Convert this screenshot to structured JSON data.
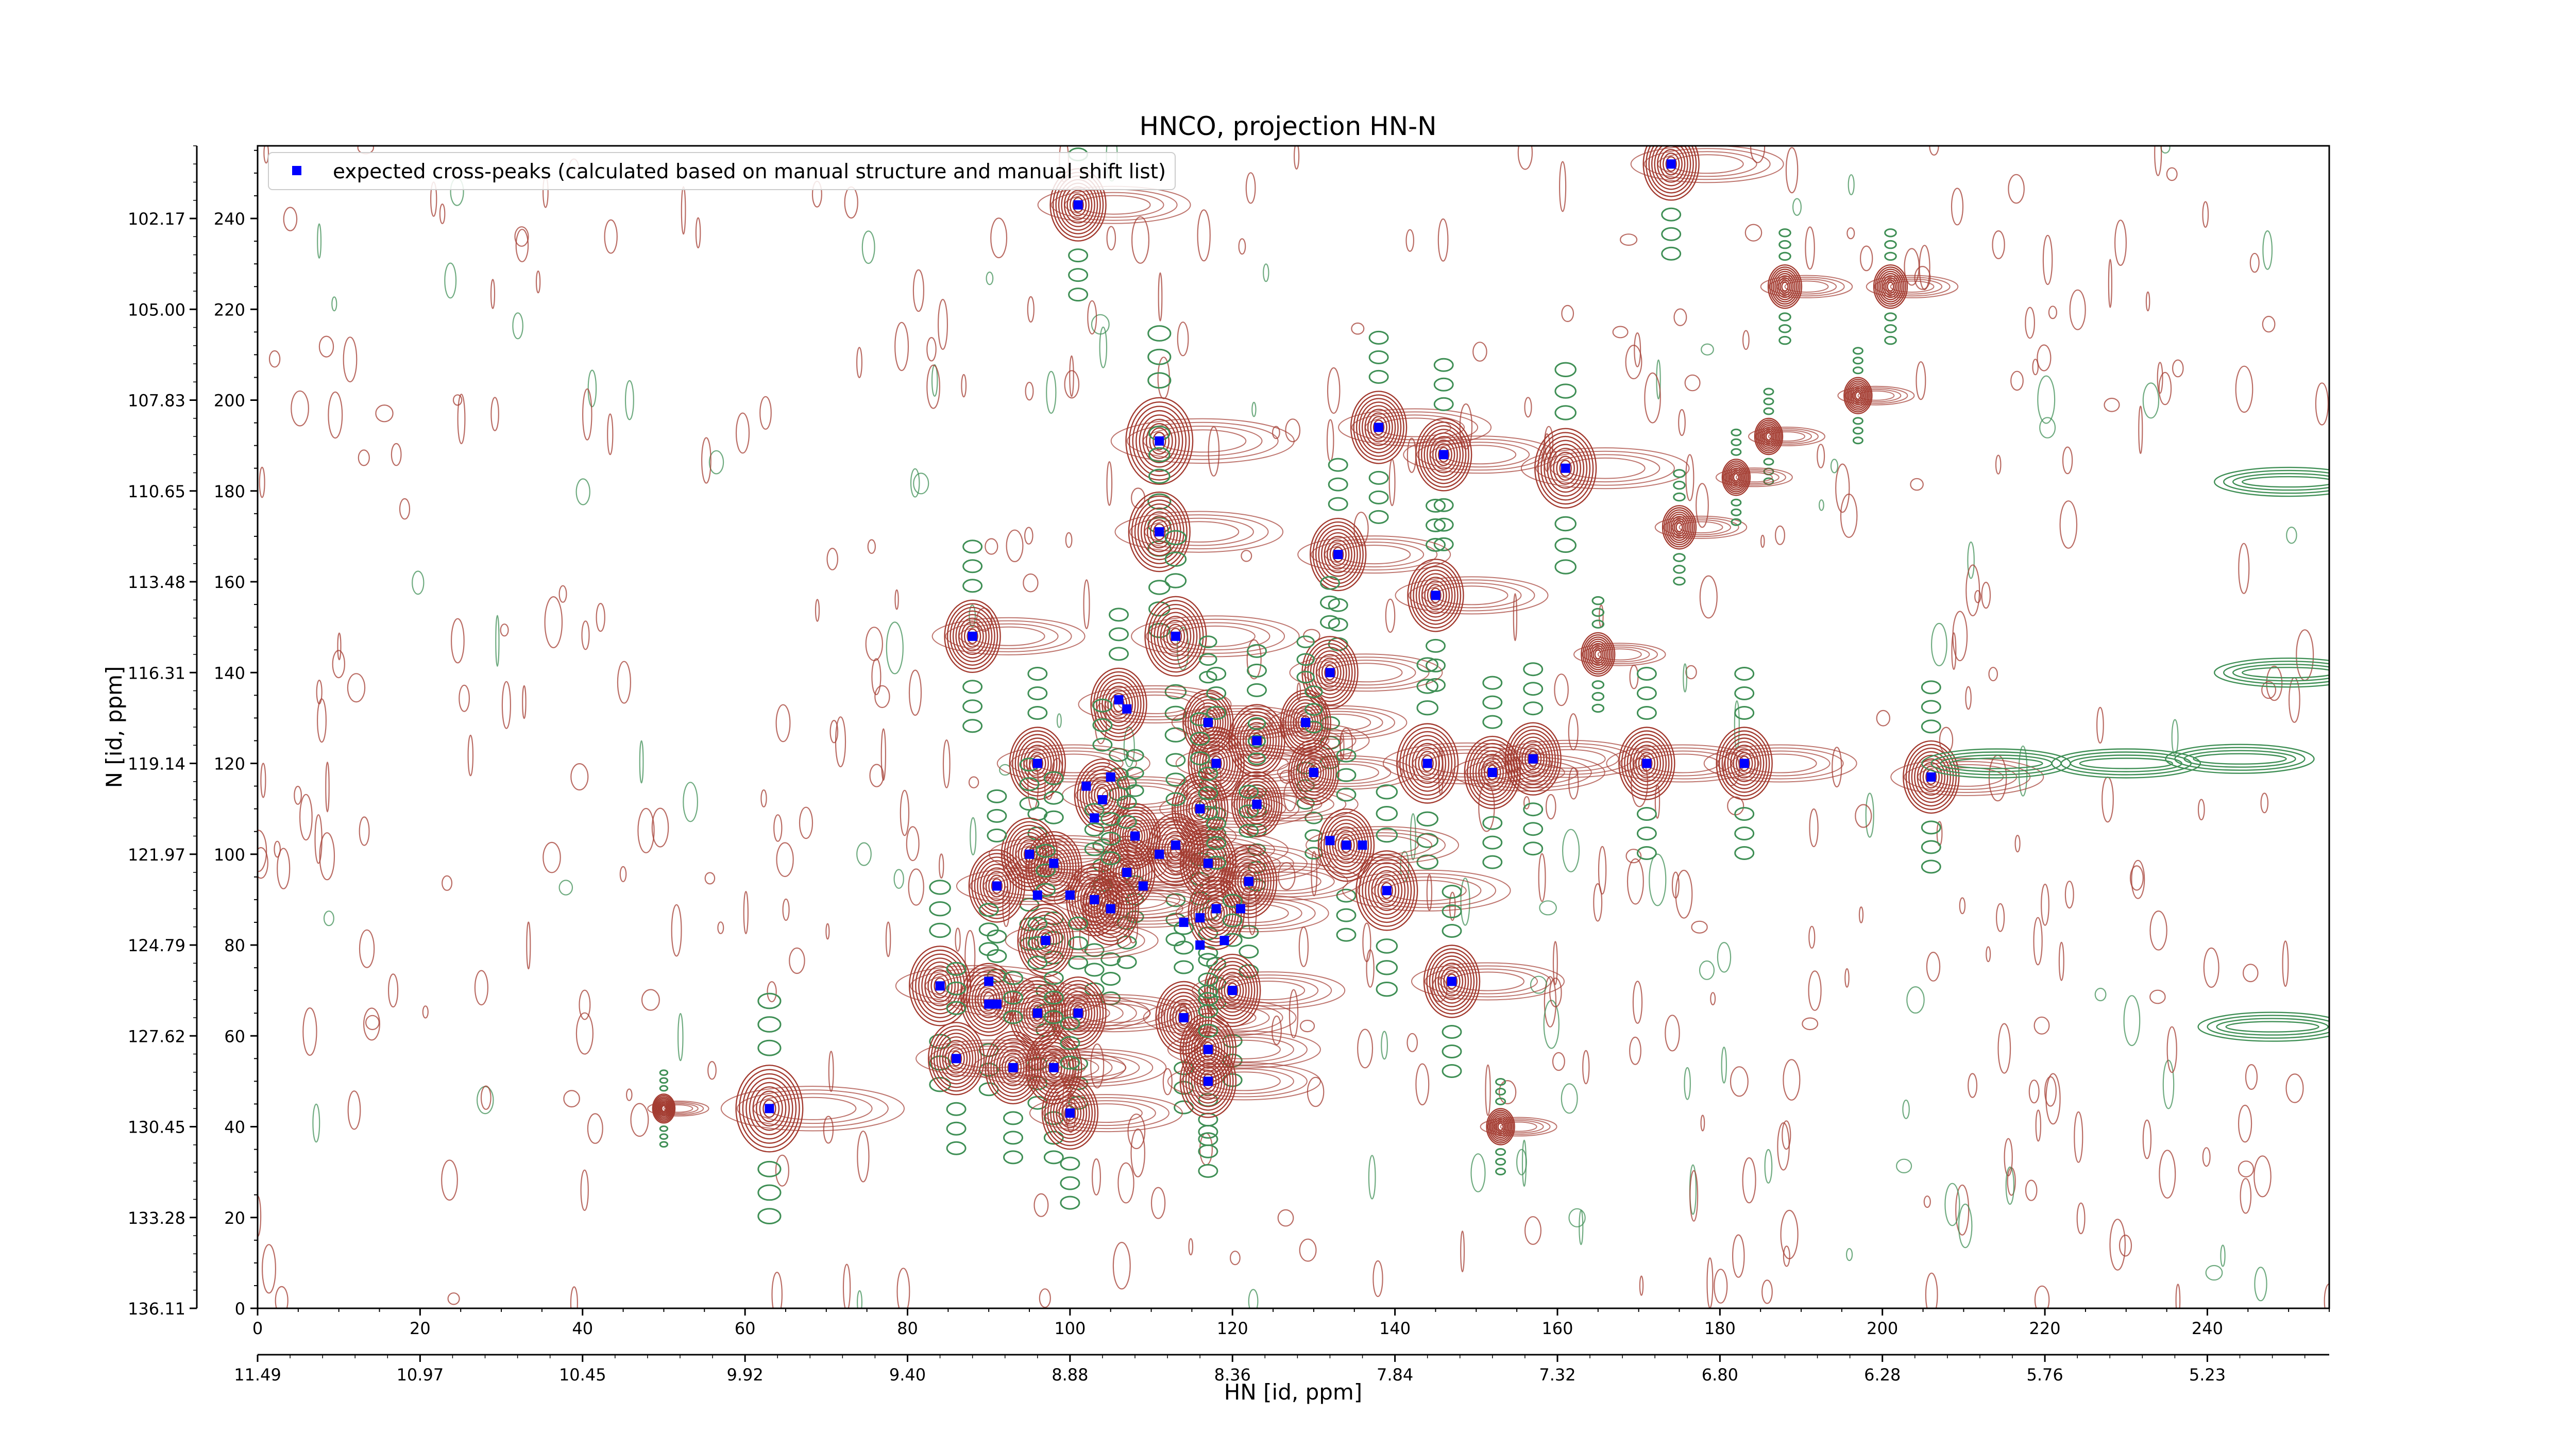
{
  "chart_data": {
    "type": "scatter",
    "title": "HNCO, projection HN-N",
    "xlabel": "HN [id, ppm]",
    "ylabel": "N [id, ppm]",
    "x_index_range": [
      0,
      255
    ],
    "y_index_range": [
      0,
      256
    ],
    "x_index_ticks": [
      "0",
      "20",
      "40",
      "60",
      "80",
      "100",
      "120",
      "140",
      "160",
      "180",
      "200",
      "220",
      "240"
    ],
    "y_index_ticks": [
      "0",
      "20",
      "40",
      "60",
      "80",
      "100",
      "120",
      "140",
      "160",
      "180",
      "200",
      "220",
      "240"
    ],
    "x_ppm_ticks": [
      {
        "index": 0,
        "label": "11.49"
      },
      {
        "index": 20,
        "label": "10.97"
      },
      {
        "index": 40,
        "label": "10.45"
      },
      {
        "index": 60,
        "label": "9.92"
      },
      {
        "index": 80,
        "label": "9.40"
      },
      {
        "index": 100,
        "label": "8.88"
      },
      {
        "index": 120,
        "label": "8.36"
      },
      {
        "index": 140,
        "label": "7.84"
      },
      {
        "index": 160,
        "label": "7.32"
      },
      {
        "index": 180,
        "label": "6.80"
      },
      {
        "index": 200,
        "label": "6.28"
      },
      {
        "index": 220,
        "label": "5.76"
      },
      {
        "index": 240,
        "label": "5.23"
      }
    ],
    "y_ppm_ticks": [
      {
        "index": 0,
        "label": "136.11"
      },
      {
        "index": 20,
        "label": "133.28"
      },
      {
        "index": 40,
        "label": "130.45"
      },
      {
        "index": 60,
        "label": "127.62"
      },
      {
        "index": 80,
        "label": "124.79"
      },
      {
        "index": 100,
        "label": "121.97"
      },
      {
        "index": 120,
        "label": "119.14"
      },
      {
        "index": 140,
        "label": "116.31"
      },
      {
        "index": 160,
        "label": "113.48"
      },
      {
        "index": 180,
        "label": "110.65"
      },
      {
        "index": 200,
        "label": "107.83"
      },
      {
        "index": 220,
        "label": "105.00"
      },
      {
        "index": 240,
        "label": "102.17"
      }
    ],
    "legend": {
      "placement": "top-left",
      "label": "expected cross-peaks (calculated based on manual structure and manual shift list)"
    },
    "series": [
      {
        "name": "expected cross-peaks (calculated based on manual structure and manual shift list)",
        "marker": "square",
        "color": "#0000ff",
        "points": [
          [
            101,
            243
          ],
          [
            174,
            252
          ],
          [
            111,
            191
          ],
          [
            138,
            194
          ],
          [
            146,
            188
          ],
          [
            161,
            185
          ],
          [
            111,
            171
          ],
          [
            133,
            166
          ],
          [
            145,
            157
          ],
          [
            88,
            148
          ],
          [
            113,
            148
          ],
          [
            132,
            140
          ],
          [
            106,
            134
          ],
          [
            107,
            132
          ],
          [
            117,
            129
          ],
          [
            129,
            129
          ],
          [
            123,
            125
          ],
          [
            96,
            120
          ],
          [
            118,
            120
          ],
          [
            130,
            118
          ],
          [
            144,
            120
          ],
          [
            152,
            118
          ],
          [
            157,
            121
          ],
          [
            171,
            120
          ],
          [
            183,
            120
          ],
          [
            206,
            117
          ],
          [
            105,
            117
          ],
          [
            102,
            115
          ],
          [
            104,
            112
          ],
          [
            103,
            108
          ],
          [
            116,
            110
          ],
          [
            123,
            111
          ],
          [
            108,
            104
          ],
          [
            113,
            102
          ],
          [
            111,
            100
          ],
          [
            132,
            103
          ],
          [
            134,
            102
          ],
          [
            136,
            102
          ],
          [
            95,
            100
          ],
          [
            98,
            98
          ],
          [
            107,
            96
          ],
          [
            117,
            98
          ],
          [
            103,
            90
          ],
          [
            100,
            91
          ],
          [
            96,
            91
          ],
          [
            109,
            93
          ],
          [
            91,
            93
          ],
          [
            122,
            94
          ],
          [
            139,
            92
          ],
          [
            105,
            88
          ],
          [
            118,
            88
          ],
          [
            116,
            86
          ],
          [
            121,
            88
          ],
          [
            114,
            85
          ],
          [
            119,
            81
          ],
          [
            116,
            80
          ],
          [
            97,
            81
          ],
          [
            84,
            71
          ],
          [
            90,
            72
          ],
          [
            90,
            67
          ],
          [
            91,
            67
          ],
          [
            96,
            65
          ],
          [
            101,
            65
          ],
          [
            114,
            64
          ],
          [
            120,
            70
          ],
          [
            147,
            72
          ],
          [
            117,
            57
          ],
          [
            86,
            55
          ],
          [
            93,
            53
          ],
          [
            98,
            53
          ],
          [
            117,
            50
          ],
          [
            63,
            44
          ],
          [
            100,
            43
          ]
        ]
      }
    ],
    "contours": {
      "positive_color": "#a33b30",
      "negative_color": "#3f8f55",
      "strong_peaks": [
        [
          101,
          243,
          1.0
        ],
        [
          174,
          252,
          1.0
        ],
        [
          111,
          191,
          1.2
        ],
        [
          138,
          194,
          1.0
        ],
        [
          146,
          188,
          1.0
        ],
        [
          161,
          185,
          1.1
        ],
        [
          111,
          171,
          1.1
        ],
        [
          133,
          166,
          1.0
        ],
        [
          145,
          157,
          1.0
        ],
        [
          88,
          148,
          1.0
        ],
        [
          113,
          148,
          1.1
        ],
        [
          132,
          140,
          1.0
        ],
        [
          106,
          133,
          1.0
        ],
        [
          117,
          129,
          0.9
        ],
        [
          129,
          129,
          0.9
        ],
        [
          123,
          125,
          1.0
        ],
        [
          96,
          120,
          1.0
        ],
        [
          118,
          120,
          1.0
        ],
        [
          130,
          118,
          0.9
        ],
        [
          144,
          120,
          1.1
        ],
        [
          152,
          118,
          1.0
        ],
        [
          157,
          121,
          1.0
        ],
        [
          171,
          120,
          1.0
        ],
        [
          183,
          120,
          1.0
        ],
        [
          206,
          117,
          1.0
        ],
        [
          104,
          113,
          1.0
        ],
        [
          116,
          110,
          1.0
        ],
        [
          123,
          111,
          0.9
        ],
        [
          108,
          104,
          0.9
        ],
        [
          113,
          101,
          1.0
        ],
        [
          134,
          102,
          1.0
        ],
        [
          95,
          100,
          1.0
        ],
        [
          98,
          97,
          1.0
        ],
        [
          107,
          96,
          1.0
        ],
        [
          117,
          98,
          1.0
        ],
        [
          103,
          90,
          1.0
        ],
        [
          91,
          93,
          1.0
        ],
        [
          122,
          94,
          1.0
        ],
        [
          139,
          92,
          1.1
        ],
        [
          105,
          88,
          1.0
        ],
        [
          118,
          87,
          1.0
        ],
        [
          97,
          81,
          1.0
        ],
        [
          84,
          71,
          1.1
        ],
        [
          90,
          68,
          1.0
        ],
        [
          96,
          65,
          1.0
        ],
        [
          101,
          65,
          1.0
        ],
        [
          114,
          64,
          1.0
        ],
        [
          120,
          70,
          1.0
        ],
        [
          147,
          72,
          1.0
        ],
        [
          117,
          57,
          1.0
        ],
        [
          86,
          55,
          1.0
        ],
        [
          93,
          53,
          1.0
        ],
        [
          98,
          53,
          1.0
        ],
        [
          117,
          50,
          1.0
        ],
        [
          63,
          44,
          1.2
        ],
        [
          100,
          43,
          1.0
        ],
        [
          188,
          225,
          0.6
        ],
        [
          201,
          225,
          0.6
        ],
        [
          197,
          201,
          0.5
        ],
        [
          186,
          192,
          0.5
        ],
        [
          175,
          172,
          0.6
        ],
        [
          165,
          144,
          0.6
        ],
        [
          182,
          183,
          0.5
        ],
        [
          50,
          44,
          0.4
        ],
        [
          153,
          40,
          0.5
        ]
      ]
    }
  }
}
